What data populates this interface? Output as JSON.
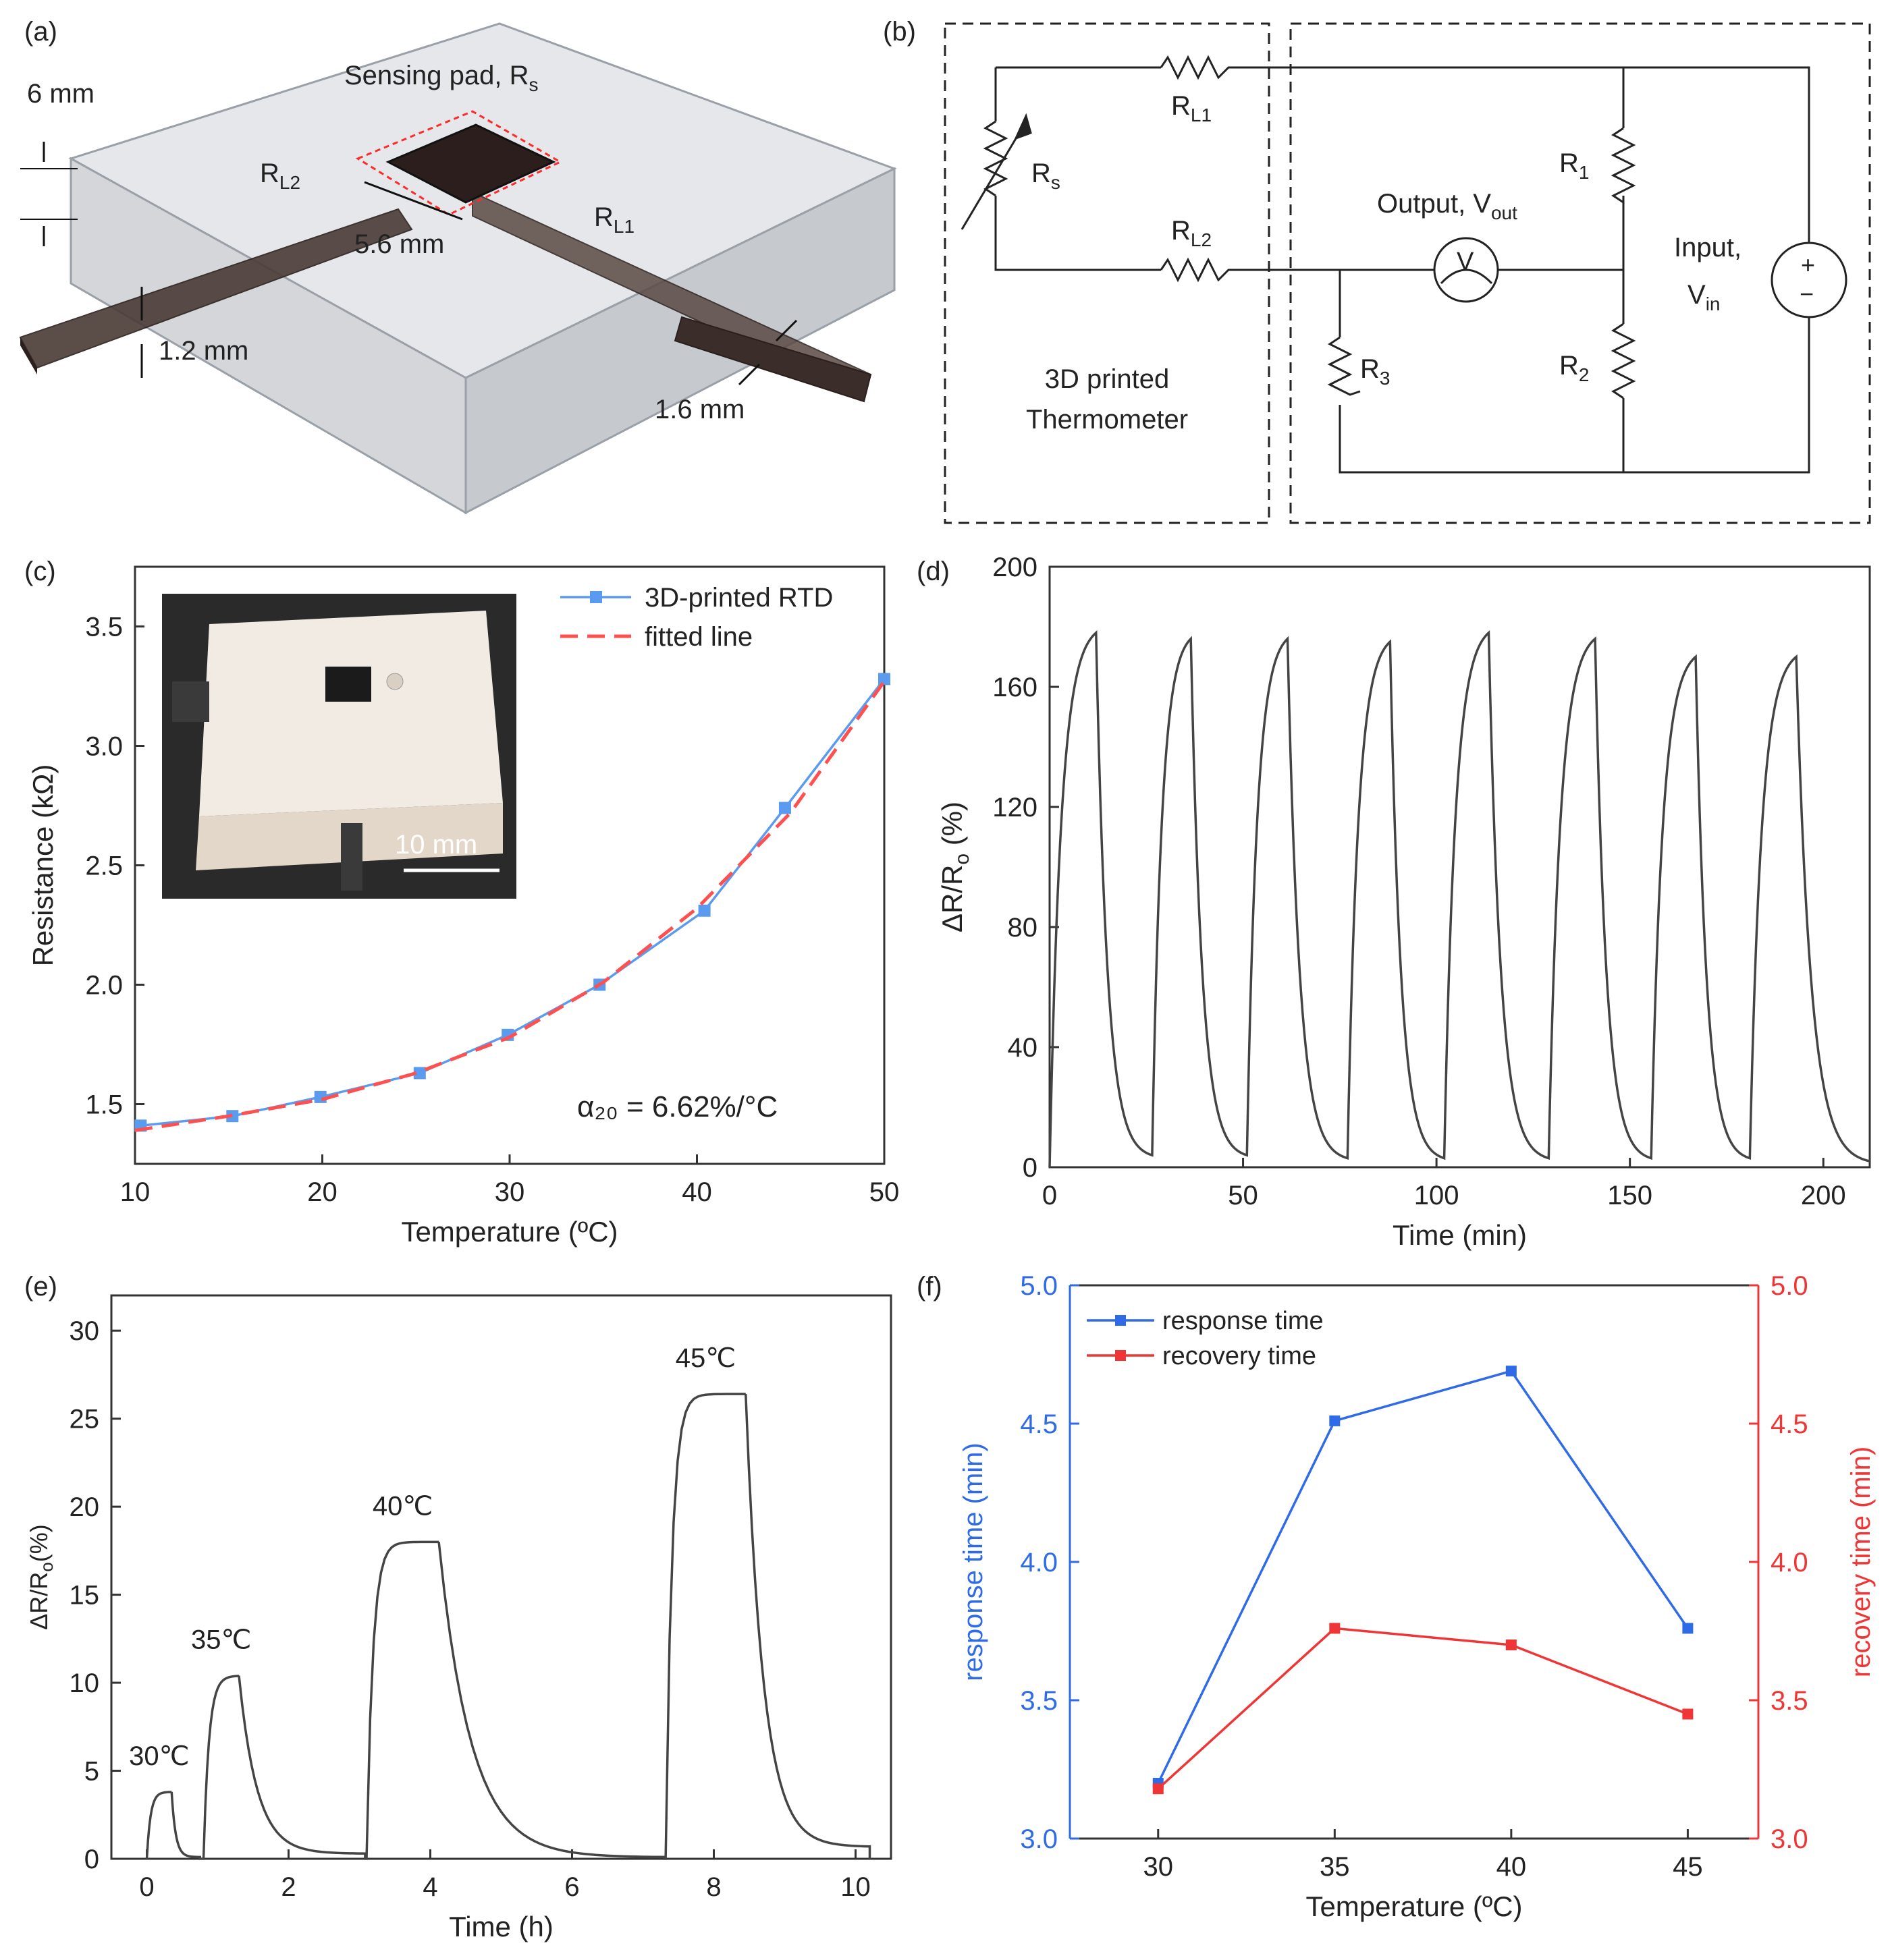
{
  "panels": {
    "a": {
      "label": "(a)",
      "sensing_pad": "Sensing pad, R",
      "sensing_pad_sub": "s",
      "dim_thickness": "6 mm",
      "dim_pad": "5.6 mm",
      "dim_lead_height": "1.2 mm",
      "dim_lead_width": "1.6 mm",
      "rl2": "R",
      "rl2_sub": "L2",
      "rl1": "R",
      "rl1_sub": "L1"
    },
    "b": {
      "label": "(b)",
      "rl1": "R",
      "rl1_sub": "L1",
      "rl2": "R",
      "rl2_sub": "L2",
      "rs": "R",
      "rs_sub": "s",
      "r1": "R",
      "r1_sub": "1",
      "r2": "R",
      "r2_sub": "2",
      "r3": "R",
      "r3_sub": "3",
      "output": "Output, V",
      "output_sub": "out",
      "input_line1": "Input,",
      "input_line2": "V",
      "input_sub": "in",
      "meter_symbol": "V",
      "plus": "+",
      "minus": "−",
      "thermo_line1": "3D printed",
      "thermo_line2": "Thermometer"
    },
    "c": {
      "label": "(c)",
      "scalebar": "10 mm"
    },
    "d": {
      "label": "(d)"
    },
    "e": {
      "label": "(e)"
    },
    "f": {
      "label": "(f)"
    }
  },
  "chart_data": [
    {
      "id": "c",
      "type": "line",
      "xlabel": "Temperature (ºC)",
      "ylabel": "Resistance (kΩ)",
      "xlim": [
        10,
        50
      ],
      "ylim": [
        1.25,
        3.75
      ],
      "xticks": [
        "10",
        "20",
        "30",
        "40",
        "50"
      ],
      "yticks": [
        "1.5",
        "2.0",
        "2.5",
        "3.0",
        "3.5"
      ],
      "annotation": "α₂₀ = 6.62%/°C",
      "series": [
        {
          "name": "3D-printed RTD",
          "color": "#5b9bef",
          "x": [
            10.3,
            15.2,
            19.9,
            25.2,
            29.9,
            34.8,
            40.4,
            44.7,
            50
          ],
          "y": [
            1.41,
            1.45,
            1.53,
            1.63,
            1.79,
            2.0,
            2.31,
            2.74,
            3.28
          ]
        },
        {
          "name": "fitted line",
          "color": "#ff5050",
          "style": "dashed",
          "x": [
            10,
            15,
            20,
            25,
            30,
            35,
            40,
            45,
            50
          ],
          "y": [
            1.39,
            1.45,
            1.52,
            1.63,
            1.78,
            2.01,
            2.32,
            2.72,
            3.27
          ]
        }
      ]
    },
    {
      "id": "d",
      "type": "line",
      "xlabel": "Time (min)",
      "ylabel": "ΔR/R",
      "ylabel_sub": "o",
      "ylabel_tail": " (%)",
      "xlim": [
        0,
        212
      ],
      "ylim": [
        0,
        200
      ],
      "xticks": [
        "0",
        "50",
        "100",
        "150",
        "200"
      ],
      "yticks": [
        "0",
        "40",
        "80",
        "120",
        "160",
        "200"
      ],
      "cycles": [
        {
          "start": 0,
          "peak_time": 12,
          "peak": 178,
          "end": 26.5,
          "base": 4
        },
        {
          "start": 26.5,
          "peak_time": 36.5,
          "peak": 176,
          "end": 51,
          "base": 4
        },
        {
          "start": 51,
          "peak_time": 61.5,
          "peak": 176,
          "end": 77,
          "base": 3
        },
        {
          "start": 77,
          "peak_time": 88,
          "peak": 175,
          "end": 102,
          "base": 3
        },
        {
          "start": 102,
          "peak_time": 113.5,
          "peak": 178,
          "end": 129,
          "base": 3
        },
        {
          "start": 129,
          "peak_time": 141,
          "peak": 176,
          "end": 155.5,
          "base": 3
        },
        {
          "start": 155.5,
          "peak_time": 167,
          "peak": 170,
          "end": 181,
          "base": 3
        },
        {
          "start": 181,
          "peak_time": 193,
          "peak": 170,
          "end": 212,
          "base": 2
        }
      ]
    },
    {
      "id": "e",
      "type": "line",
      "xlabel": "Time (h)",
      "ylabel": "ΔR/R",
      "ylabel_sub": "o",
      "ylabel_tail": "(%)",
      "xlim": [
        -0.5,
        10.5
      ],
      "ylim": [
        0,
        32
      ],
      "xticks": [
        "0",
        "2",
        "4",
        "6",
        "8",
        "10"
      ],
      "yticks": [
        "0",
        "5",
        "10",
        "15",
        "20",
        "25",
        "30"
      ],
      "steps": [
        {
          "label": "30℃",
          "on": 0.0,
          "off": 0.35,
          "plateau": 3.8,
          "next": 0.75,
          "base_end": 0.1
        },
        {
          "label": "35℃",
          "on": 0.8,
          "off": 1.3,
          "plateau": 10.4,
          "next": 3.08,
          "base_end": 0.3
        },
        {
          "label": "40℃",
          "on": 3.1,
          "off": 4.12,
          "plateau": 18.0,
          "next": 7.3,
          "base_end": 0.1
        },
        {
          "label": "45℃",
          "on": 7.32,
          "off": 8.45,
          "plateau": 26.4,
          "next": 10.2,
          "base_end": 0.7
        }
      ]
    },
    {
      "id": "f",
      "type": "line",
      "xlabel": "Temperature (ºC)",
      "ylabel_left": "response time (min)",
      "ylabel_right": "recovery time (min)",
      "x": [
        30,
        35,
        40,
        45
      ],
      "xlim": [
        27.5,
        47
      ],
      "ylim": [
        3.0,
        5.0
      ],
      "xticks": [
        "30",
        "35",
        "40",
        "45"
      ],
      "yticks": [
        "3.0",
        "3.5",
        "4.0",
        "4.5",
        "5.0"
      ],
      "series": [
        {
          "name": "response time",
          "color": "#2f6be6",
          "axis": "left",
          "values": [
            3.2,
            4.51,
            4.69,
            3.76
          ]
        },
        {
          "name": "recovery time",
          "color": "#ef3535",
          "axis": "right",
          "values": [
            3.18,
            3.76,
            3.7,
            3.45
          ]
        }
      ]
    }
  ]
}
